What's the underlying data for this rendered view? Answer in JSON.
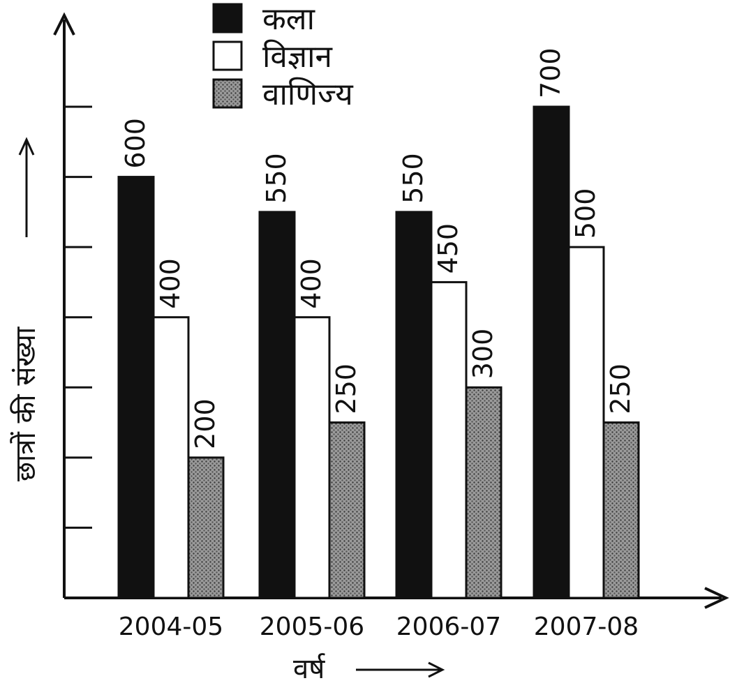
{
  "chart_data": {
    "type": "bar",
    "title": "",
    "xlabel": "वर्ष",
    "ylabel": "छात्रों की संख्या",
    "categories": [
      "2004-05",
      "2005-06",
      "2006-07",
      "2007-08"
    ],
    "series": [
      {
        "name": "कला",
        "values": [
          600,
          550,
          550,
          700
        ],
        "color": "#111111",
        "pattern": "solid"
      },
      {
        "name": "विज्ञान",
        "values": [
          400,
          400,
          450,
          500
        ],
        "color": "#ffffff",
        "pattern": "empty"
      },
      {
        "name": "वाणिज्य",
        "values": [
          200,
          250,
          300,
          250
        ],
        "color": "#888888",
        "pattern": "dotted"
      }
    ],
    "ylim": [
      0,
      800
    ],
    "legend_position": "top-center",
    "grid": false,
    "value_labels_rotated": true
  }
}
